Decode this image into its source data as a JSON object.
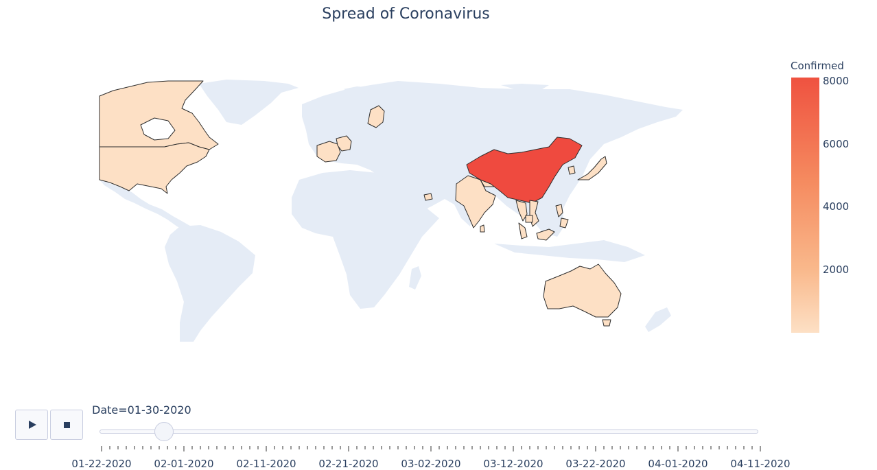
{
  "title": "Spread of Coronavirus",
  "colorbar": {
    "title": "Confirmed",
    "ticks": [
      "8000",
      "6000",
      "4000",
      "2000"
    ],
    "scale": [
      "#fde0c5",
      "#f9b88b",
      "#f58a5f",
      "#ef5240"
    ]
  },
  "land_color": "#e5ecf6",
  "border_color": "#2d2d2d",
  "countries": [
    {
      "name": "China",
      "fill": "#ef4a3f"
    },
    {
      "name": "United States",
      "fill": "#fde0c5"
    },
    {
      "name": "Canada",
      "fill": "#fde0c5"
    },
    {
      "name": "Australia",
      "fill": "#fde0c5"
    },
    {
      "name": "India",
      "fill": "#fde0c5"
    },
    {
      "name": "France",
      "fill": "#fde0c5"
    },
    {
      "name": "Germany",
      "fill": "#fde0c5"
    },
    {
      "name": "Finland",
      "fill": "#fde0c5"
    },
    {
      "name": "Japan",
      "fill": "#fde0c5"
    },
    {
      "name": "South Korea",
      "fill": "#fde0c5"
    },
    {
      "name": "Vietnam",
      "fill": "#fde0c5"
    },
    {
      "name": "Thailand",
      "fill": "#fde0c5"
    },
    {
      "name": "Malaysia",
      "fill": "#fde0c5"
    },
    {
      "name": "Philippines",
      "fill": "#fde0c5"
    },
    {
      "name": "Cambodia",
      "fill": "#fde0c5"
    },
    {
      "name": "Nepal",
      "fill": "#fde0c5"
    },
    {
      "name": "United Arab Emirates",
      "fill": "#fde0c5"
    },
    {
      "name": "Sri Lanka",
      "fill": "#fde0c5"
    }
  ],
  "slider": {
    "prefix": "Date=",
    "current": "01-30-2020",
    "label": "Date=01-30-2020",
    "labels": [
      "01-22-2020",
      "02-01-2020",
      "02-11-2020",
      "02-21-2020",
      "03-02-2020",
      "03-12-2020",
      "03-22-2020",
      "04-01-2020",
      "04-11-2020"
    ]
  },
  "buttons": {
    "play": "play-icon",
    "stop": "stop-icon"
  }
}
